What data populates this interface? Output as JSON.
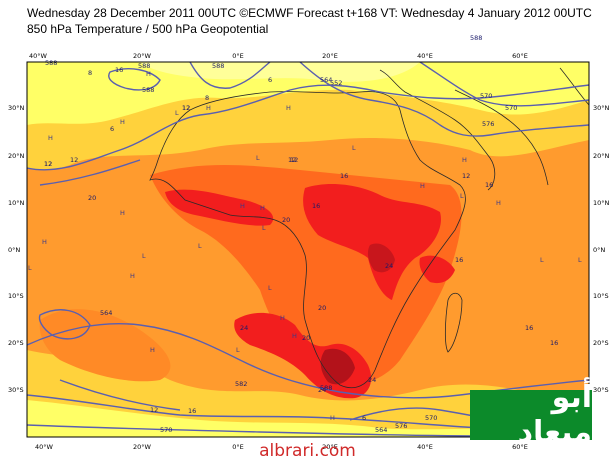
{
  "header": {
    "line1": "Wednesday 28 December 2011 00UTC ©ECMWF Forecast t+168 VT: Wednesday 4 January 2012 00UTC",
    "line2": "850 hPa Temperature / 500 hPa Geopotential"
  },
  "axes": {
    "lon_top": [
      "40°W",
      "20°W",
      "0°E",
      "20°E",
      "40°E",
      "60°E"
    ],
    "lon_bottom": [
      "40°W",
      "20°W",
      "0°E",
      "20°E",
      "40°E",
      "60°E"
    ],
    "lat_left": [
      "30°N",
      "20°N",
      "10°N",
      "0°N",
      "10°S",
      "20°S",
      "30°S"
    ],
    "lat_right": [
      "30°N",
      "20°N",
      "10°N",
      "0°N",
      "10°S",
      "20°S",
      "30°S"
    ]
  },
  "contour_labels": [
    "588",
    "8",
    "12",
    "16",
    "12",
    "12",
    "6",
    "12",
    "8",
    "588",
    "552",
    "570",
    "576",
    "570",
    "588",
    "564",
    "6",
    "12",
    "16",
    "12",
    "16",
    "20",
    "16",
    "24",
    "16",
    "20",
    "24",
    "20",
    "24",
    "12",
    "16",
    "24",
    "20",
    "12",
    "16",
    "16",
    "588",
    "582",
    "588",
    "576",
    "570",
    "564",
    "576",
    "570",
    "564",
    "588",
    "6",
    "12"
  ],
  "pressure_markers": [
    "H",
    "H",
    "H",
    "L",
    "H",
    "H",
    "H",
    "L",
    "H",
    "L",
    "H",
    "H",
    "L",
    "L",
    "H",
    "L",
    "H",
    "L",
    "H",
    "L",
    "H",
    "H",
    "L",
    "L",
    "H",
    "L",
    "H",
    "H",
    "L"
  ],
  "watermark": {
    "logo_text": "أبو ميعاد",
    "site": "albrari.com"
  },
  "colors": {
    "cold_yellow": "#ffff66",
    "warm_yellow": "#ffd23c",
    "orange": "#ff9b2e",
    "dark_orange": "#ff6a1e",
    "red": "#f21e1e",
    "dark_red": "#b3121a",
    "contour_line": "#5a5fb0"
  }
}
